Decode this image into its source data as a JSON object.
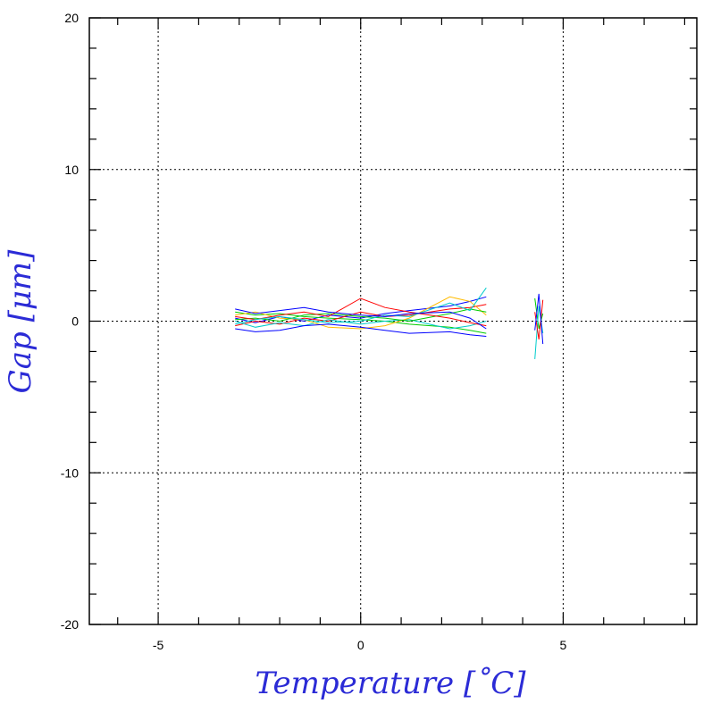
{
  "chart_data": {
    "type": "line",
    "title": "",
    "xlabel": "Temperature [˚C]",
    "ylabel": "Gap [μm]",
    "xlim": [
      -6.7,
      8.3
    ],
    "ylim": [
      -20,
      20
    ],
    "x_ticks": [
      -5,
      0,
      5
    ],
    "y_ticks": [
      -20,
      -10,
      0,
      10,
      20
    ],
    "x_tick_labels": [
      "-5",
      "0",
      "5"
    ],
    "y_tick_labels": [
      "-20",
      "-10",
      "0",
      "10",
      "20"
    ],
    "grid": true,
    "legend": "none",
    "series": [
      {
        "color": "#0000ff",
        "x": [
          -3.1,
          -2.6,
          -2.0,
          -1.4,
          -0.8,
          0.0,
          0.6,
          1.2,
          2.2,
          2.7,
          3.1
        ],
        "y": [
          0.2,
          -0.1,
          0.3,
          0.0,
          0.4,
          0.2,
          0.5,
          0.7,
          1.0,
          1.3,
          1.6
        ]
      },
      {
        "color": "#00cc00",
        "x": [
          -3.1,
          -2.6,
          -2.0,
          -1.4,
          -0.8,
          0.0,
          0.6,
          1.2,
          2.2,
          2.7,
          3.1
        ],
        "y": [
          0.6,
          0.4,
          0.5,
          0.3,
          0.2,
          0.1,
          0.0,
          -0.2,
          -0.4,
          -0.6,
          -0.8
        ]
      },
      {
        "color": "#ff0000",
        "x": [
          -3.1,
          -2.6,
          -2.0,
          -1.4,
          -0.8,
          0.0,
          0.6,
          1.2,
          2.2,
          2.7,
          3.1
        ],
        "y": [
          -0.3,
          0.0,
          -0.2,
          0.2,
          0.0,
          0.6,
          0.3,
          0.4,
          0.8,
          0.9,
          1.1
        ]
      },
      {
        "color": "#00cccc",
        "x": [
          -3.1,
          -2.6,
          -2.0,
          -1.4,
          -0.8,
          0.0,
          0.6,
          1.2,
          2.2,
          2.7,
          3.1
        ],
        "y": [
          0.0,
          -0.4,
          -0.1,
          -0.3,
          0.1,
          -0.2,
          0.0,
          0.1,
          -0.5,
          -0.3,
          0.0
        ]
      },
      {
        "color": "#ffbb00",
        "x": [
          -3.1,
          -2.6,
          -2.0,
          -1.4,
          -0.8,
          0.0,
          0.6,
          1.2,
          2.2,
          2.7,
          3.1
        ],
        "y": [
          0.4,
          0.6,
          0.2,
          0.1,
          -0.4,
          -0.5,
          -0.3,
          0.2,
          1.6,
          1.3,
          0.4
        ]
      },
      {
        "color": "#0000ff",
        "x": [
          -3.1,
          -2.6,
          -2.0,
          -1.4,
          -0.8,
          0.0,
          0.6,
          1.2,
          2.2,
          2.7,
          3.1
        ],
        "y": [
          -0.5,
          -0.7,
          -0.6,
          -0.3,
          -0.2,
          -0.4,
          -0.6,
          -0.8,
          -0.7,
          -0.9,
          -1.0
        ]
      },
      {
        "color": "#00cc00",
        "x": [
          -3.1,
          -2.6,
          -2.0,
          -1.4,
          -0.8,
          0.0,
          0.6,
          1.2,
          2.2,
          2.7,
          3.1
        ],
        "y": [
          0.1,
          0.2,
          0.0,
          0.4,
          0.5,
          0.3,
          0.2,
          0.0,
          0.5,
          0.8,
          0.6
        ]
      },
      {
        "color": "#ff0000",
        "x": [
          -3.1,
          -2.6,
          -2.0,
          -1.4,
          -0.8,
          0.0,
          0.6,
          1.2,
          2.2,
          2.7,
          3.1
        ],
        "y": [
          0.3,
          0.1,
          0.4,
          0.6,
          0.3,
          1.5,
          0.9,
          0.6,
          0.2,
          -0.1,
          -0.3
        ]
      },
      {
        "color": "#00cccc",
        "x": [
          -3.1,
          -2.6,
          -2.0,
          -1.4,
          -0.8,
          0.0,
          0.6,
          1.2,
          2.2,
          2.7,
          3.1
        ],
        "y": [
          -0.2,
          0.1,
          0.3,
          0.1,
          -0.1,
          0.0,
          0.4,
          0.3,
          1.2,
          0.7,
          2.2
        ]
      },
      {
        "color": "#0000ff",
        "x": [
          -3.1,
          -2.6,
          -2.0,
          -1.4,
          -0.8,
          0.0,
          0.6,
          1.2,
          2.2,
          2.7,
          3.1
        ],
        "y": [
          0.8,
          0.5,
          0.7,
          0.9,
          0.6,
          0.4,
          0.3,
          0.5,
          0.6,
          0.2,
          -0.5
        ]
      },
      {
        "color": "#00cc00",
        "x": [
          4.3,
          4.4,
          4.5
        ],
        "y": [
          1.5,
          -0.5,
          0.5
        ]
      },
      {
        "color": "#00cccc",
        "x": [
          4.3,
          4.4,
          4.5
        ],
        "y": [
          -2.5,
          1.0,
          -0.8
        ]
      },
      {
        "color": "#ff0000",
        "x": [
          4.3,
          4.4,
          4.5
        ],
        "y": [
          0.6,
          -1.2,
          1.4
        ]
      },
      {
        "color": "#0000ff",
        "x": [
          4.3,
          4.4,
          4.5
        ],
        "y": [
          -0.6,
          1.8,
          -1.5
        ]
      }
    ]
  }
}
